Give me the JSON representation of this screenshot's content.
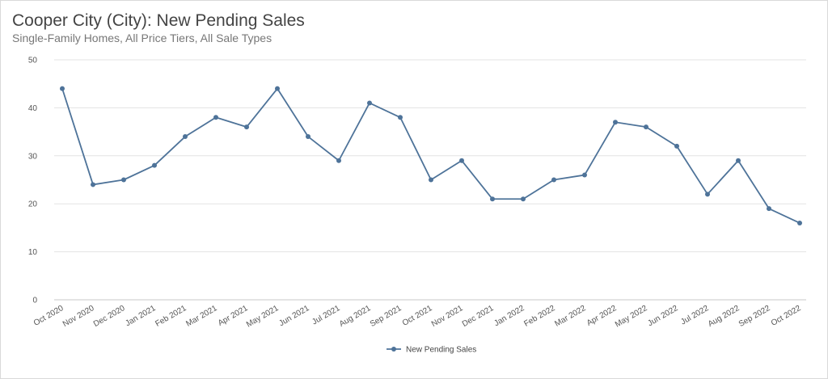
{
  "chart_data": {
    "type": "line",
    "title": "Cooper City (City): New Pending Sales",
    "subtitle": "Single-Family Homes, All Price Tiers, All Sale Types",
    "xlabel": "",
    "ylabel": "",
    "ylim": [
      0,
      50
    ],
    "yticks": [
      "0",
      "10",
      "20",
      "30",
      "40",
      "50"
    ],
    "grid": true,
    "legend_position": "bottom-center",
    "categories": [
      "Oct 2020",
      "Nov 2020",
      "Dec 2020",
      "Jan 2021",
      "Feb 2021",
      "Mar 2021",
      "Apr 2021",
      "May 2021",
      "Jun 2021",
      "Jul 2021",
      "Aug 2021",
      "Sep 2021",
      "Oct 2021",
      "Nov 2021",
      "Dec 2021",
      "Jan 2022",
      "Feb 2022",
      "Mar 2022",
      "Apr 2022",
      "May 2022",
      "Jun 2022",
      "Jul 2022",
      "Aug 2022",
      "Sep 2022",
      "Oct 2022"
    ],
    "series": [
      {
        "name": "New Pending Sales",
        "color": "#4e7399",
        "values": [
          44,
          24,
          25,
          28,
          34,
          38,
          36,
          44,
          34,
          29,
          41,
          38,
          25,
          29,
          21,
          21,
          25,
          26,
          37,
          36,
          32,
          22,
          29,
          19,
          16
        ]
      }
    ]
  }
}
